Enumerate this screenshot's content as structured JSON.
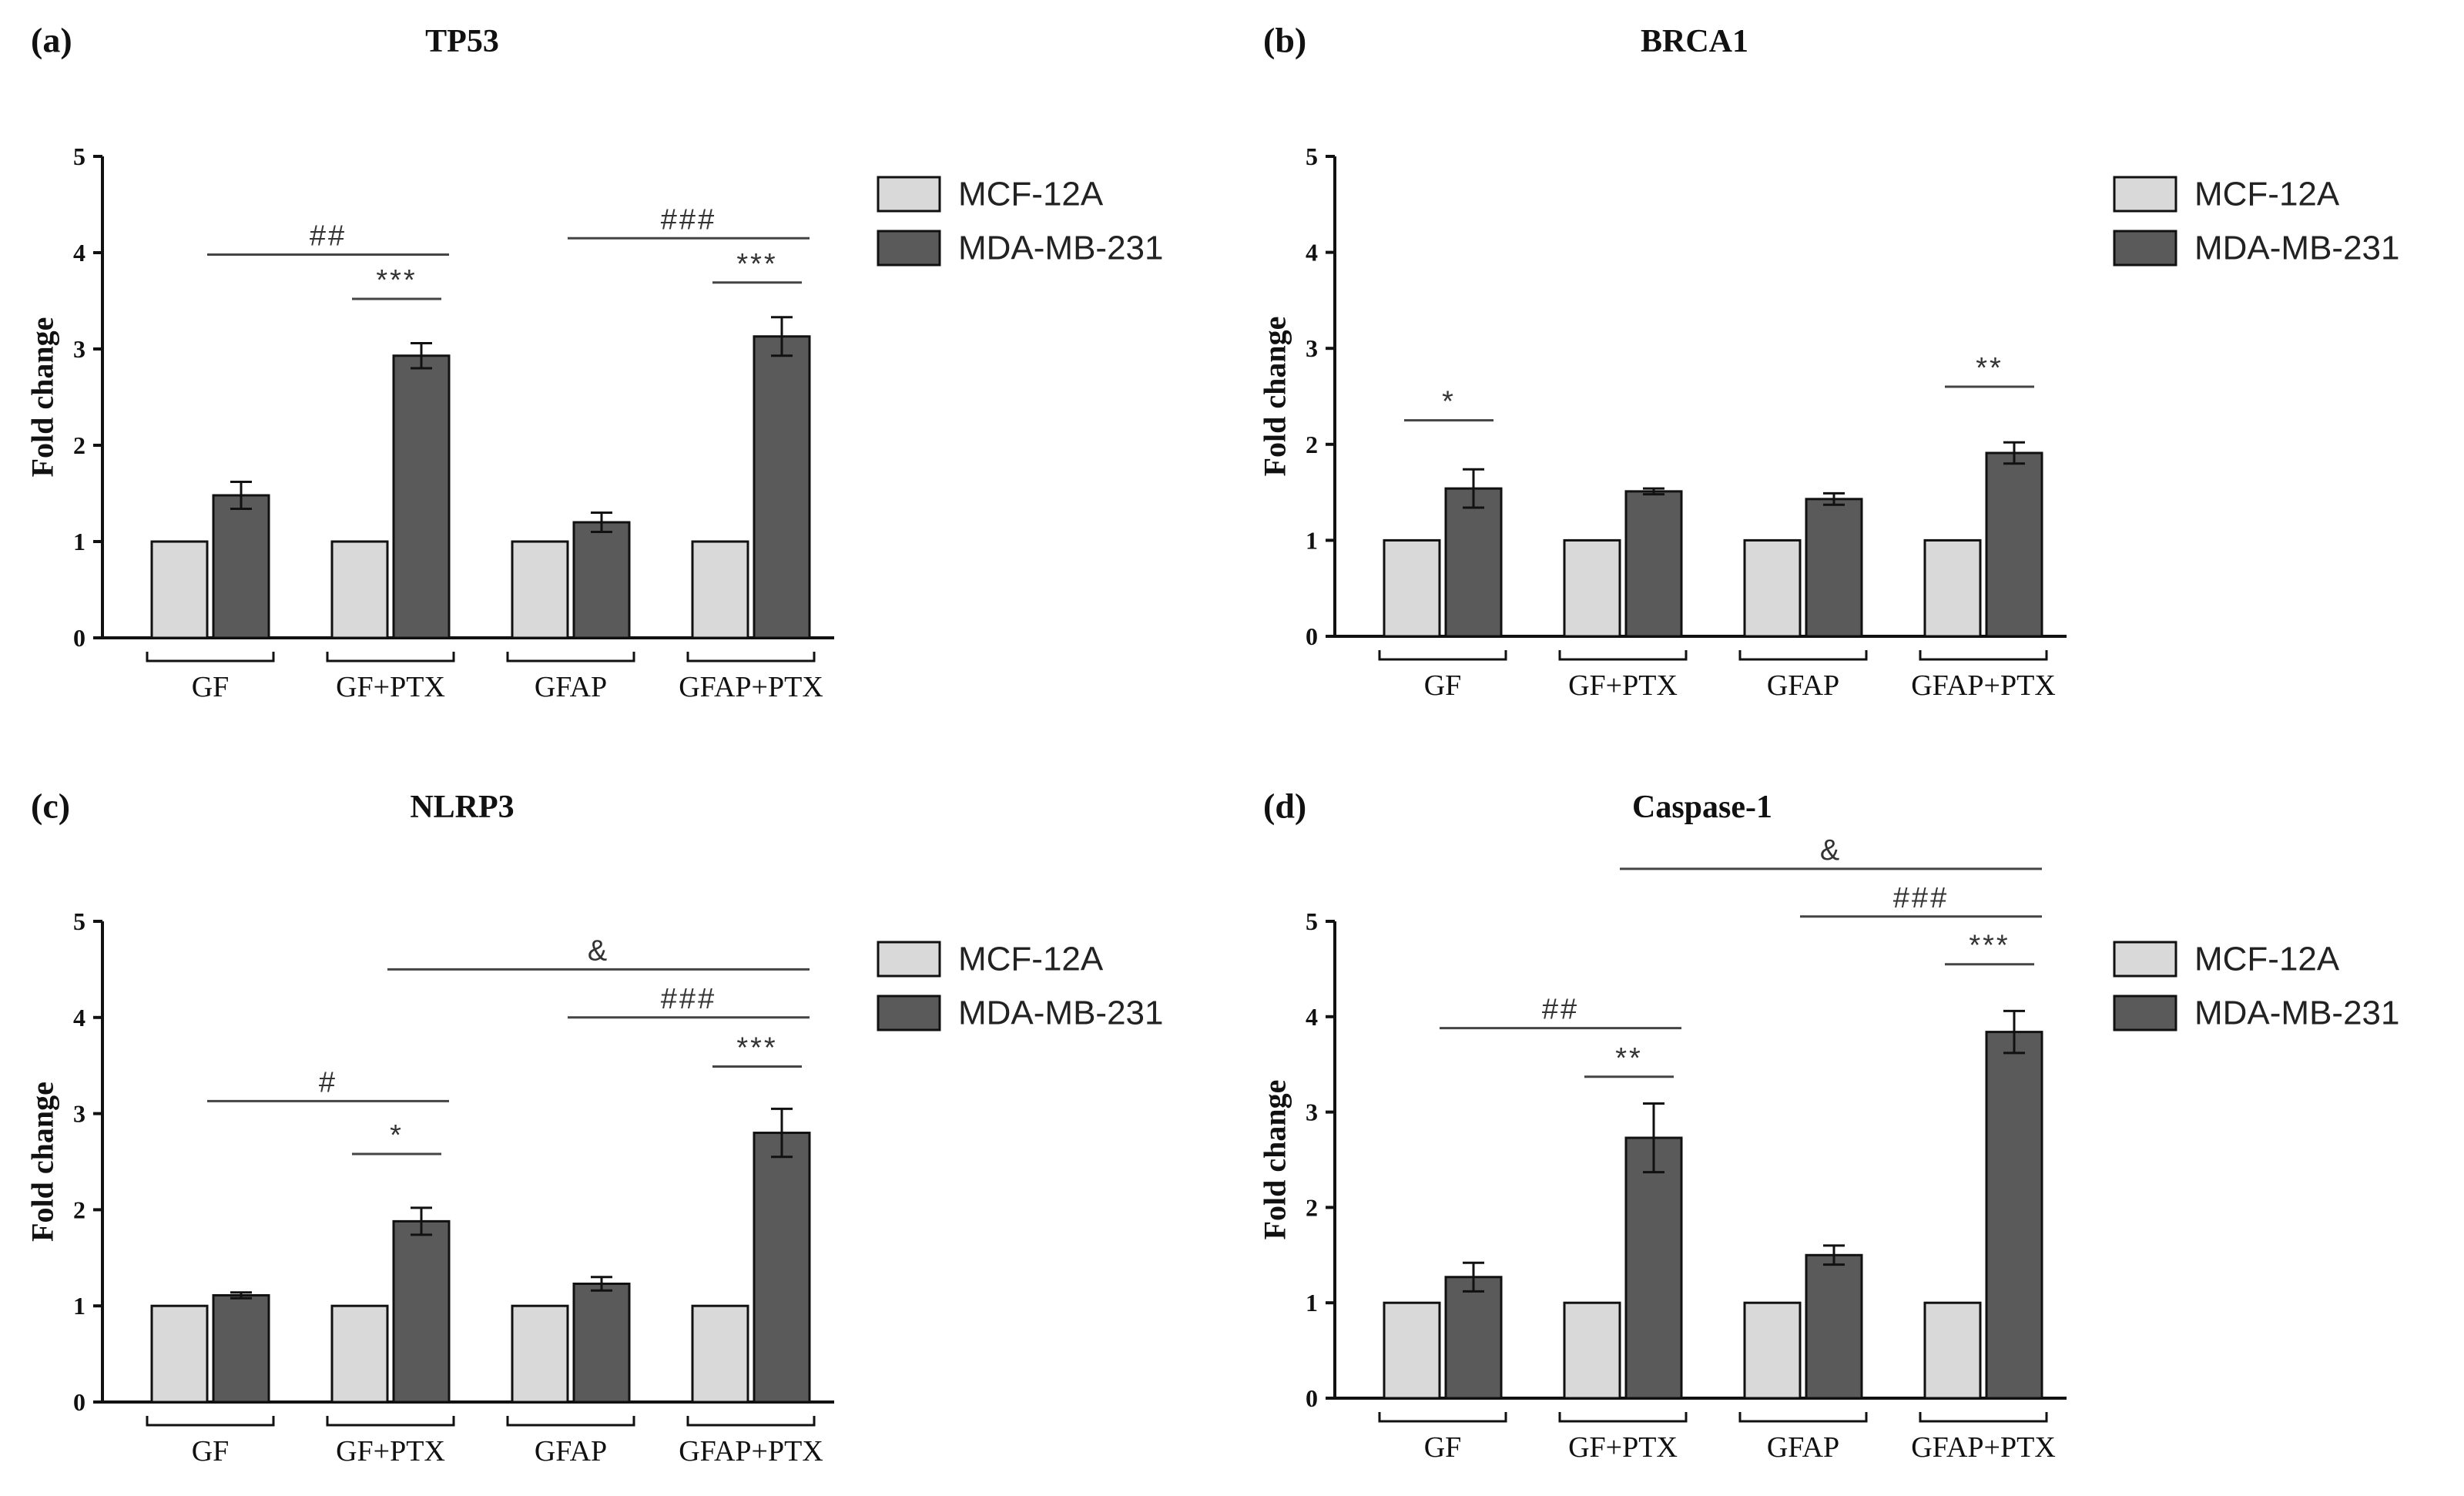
{
  "chart_data": [
    {
      "panel": "(a)",
      "title": "TP53",
      "type": "bar",
      "ylabel": "Fold change",
      "ylim": [
        0,
        5
      ],
      "yticks": [
        "0",
        "1",
        "2",
        "3",
        "4",
        "5"
      ],
      "categories": [
        "GF",
        "GF+PTX",
        "GFAP",
        "GFAP+PTX"
      ],
      "series": [
        {
          "name": "MCF-12A",
          "color": "#d9d9d9",
          "values": [
            1,
            1,
            1,
            1
          ],
          "errors": [
            0,
            0,
            0,
            0
          ]
        },
        {
          "name": "MDA-MB-231",
          "color": "#5a5a5a",
          "values": [
            1.48,
            2.93,
            1.2,
            3.13
          ],
          "errors": [
            0.14,
            0.13,
            0.1,
            0.2
          ]
        }
      ],
      "annotations": [
        {
          "label": "##",
          "from_cat": 0,
          "to_cat": 1,
          "y": 3.98
        },
        {
          "label": "***",
          "from_cat": 1,
          "to_cat": 1,
          "y": 3.52
        },
        {
          "label": "###",
          "from_cat": 2,
          "to_cat": 3,
          "y": 4.15
        },
        {
          "label": "***",
          "from_cat": 3,
          "to_cat": 3,
          "y": 3.69
        }
      ]
    },
    {
      "panel": "(b)",
      "title": "BRCA1",
      "type": "bar",
      "ylabel": "Fold change",
      "ylim": [
        0,
        5
      ],
      "yticks": [
        "0",
        "1",
        "2",
        "3",
        "4",
        "5"
      ],
      "categories": [
        "GF",
        "GF+PTX",
        "GFAP",
        "GFAP+PTX"
      ],
      "series": [
        {
          "name": "MCF-12A",
          "color": "#d9d9d9",
          "values": [
            1,
            1,
            1,
            1
          ],
          "errors": [
            0,
            0,
            0,
            0
          ]
        },
        {
          "name": "MDA-MB-231",
          "color": "#5a5a5a",
          "values": [
            1.54,
            1.51,
            1.43,
            1.91
          ],
          "errors": [
            0.2,
            0.03,
            0.06,
            0.11
          ]
        }
      ],
      "annotations": [
        {
          "label": "*",
          "from_cat": 0,
          "to_cat": 0,
          "y": 2.25
        },
        {
          "label": "**",
          "from_cat": 3,
          "to_cat": 3,
          "y": 2.6
        }
      ]
    },
    {
      "panel": "(c)",
      "title": "NLRP3",
      "type": "bar",
      "ylabel": "Fold change",
      "ylim": [
        0,
        5
      ],
      "yticks": [
        "0",
        "1",
        "2",
        "3",
        "4",
        "5"
      ],
      "categories": [
        "GF",
        "GF+PTX",
        "GFAP",
        "GFAP+PTX"
      ],
      "series": [
        {
          "name": "MCF-12A",
          "color": "#d9d9d9",
          "values": [
            1,
            1,
            1,
            1
          ],
          "errors": [
            0,
            0,
            0,
            0
          ]
        },
        {
          "name": "MDA-MB-231",
          "color": "#5a5a5a",
          "values": [
            1.11,
            1.88,
            1.23,
            2.8
          ],
          "errors": [
            0.03,
            0.14,
            0.07,
            0.25
          ]
        }
      ],
      "annotations": [
        {
          "label": "#",
          "from_cat": 0,
          "to_cat": 1,
          "y": 3.13
        },
        {
          "label": "*",
          "from_cat": 1,
          "to_cat": 1,
          "y": 2.58
        },
        {
          "label": "&",
          "from_cat": 1,
          "to_cat": 3,
          "y": 4.5
        },
        {
          "label": "###",
          "from_cat": 2,
          "to_cat": 3,
          "y": 4.0
        },
        {
          "label": "***",
          "from_cat": 3,
          "to_cat": 3,
          "y": 3.49
        }
      ]
    },
    {
      "panel": "(d)",
      "title": "Caspase-1",
      "type": "bar",
      "ylabel": "Fold change",
      "ylim": [
        0,
        5
      ],
      "yticks": [
        "0",
        "1",
        "2",
        "3",
        "4",
        "5"
      ],
      "categories": [
        "GF",
        "GF+PTX",
        "GFAP",
        "GFAP+PTX"
      ],
      "series": [
        {
          "name": "MCF-12A",
          "color": "#d9d9d9",
          "values": [
            1,
            1,
            1,
            1
          ],
          "errors": [
            0,
            0,
            0,
            0
          ]
        },
        {
          "name": "MDA-MB-231",
          "color": "#5a5a5a",
          "values": [
            1.27,
            2.73,
            1.5,
            3.84
          ],
          "errors": [
            0.15,
            0.36,
            0.1,
            0.22
          ]
        }
      ],
      "annotations": [
        {
          "label": "##",
          "from_cat": 0,
          "to_cat": 1,
          "y": 3.88
        },
        {
          "label": "**",
          "from_cat": 1,
          "to_cat": 1,
          "y": 3.37
        },
        {
          "label": "&",
          "from_cat": 1,
          "to_cat": 3,
          "y": 5.55
        },
        {
          "label": "###",
          "from_cat": 2,
          "to_cat": 3,
          "y": 5.05
        },
        {
          "label": "***",
          "from_cat": 3,
          "to_cat": 3,
          "y": 4.55
        }
      ]
    }
  ]
}
